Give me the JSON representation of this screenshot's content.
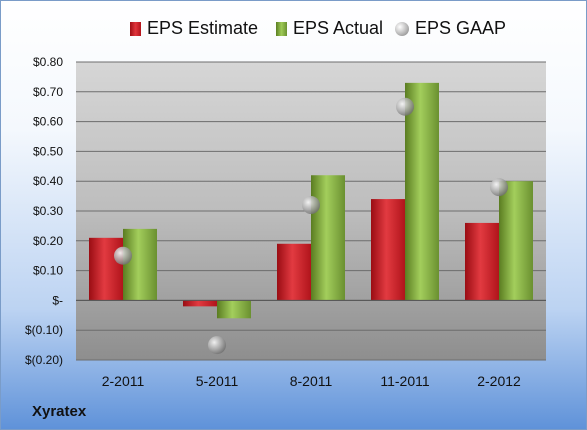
{
  "chart_data": {
    "type": "bar",
    "categories": [
      "2-2011",
      "5-2011",
      "8-2011",
      "11-2011",
      "2-2012"
    ],
    "series": [
      {
        "name": "EPS Estimate",
        "type": "bar",
        "color": "#c81f26",
        "values": [
          0.21,
          -0.02,
          0.19,
          0.34,
          0.26
        ]
      },
      {
        "name": "EPS Actual",
        "type": "bar",
        "color": "#8db847",
        "values": [
          0.24,
          -0.06,
          0.42,
          0.73,
          0.4
        ]
      },
      {
        "name": "EPS GAAP",
        "type": "scatter",
        "color": "#a8a8a8",
        "values": [
          0.15,
          -0.15,
          0.32,
          0.65,
          0.38
        ]
      }
    ],
    "ylim": [
      -0.2,
      0.8
    ],
    "yticks": [
      {
        "value": 0.8,
        "label": "$0.80"
      },
      {
        "value": 0.7,
        "label": "$0.70"
      },
      {
        "value": 0.6,
        "label": "$0.60"
      },
      {
        "value": 0.5,
        "label": "$0.50"
      },
      {
        "value": 0.4,
        "label": "$0.40"
      },
      {
        "value": 0.3,
        "label": "$0.30"
      },
      {
        "value": 0.2,
        "label": "$0.20"
      },
      {
        "value": 0.1,
        "label": "$0.10"
      },
      {
        "value": 0.0,
        "label": "$-"
      },
      {
        "value": -0.1,
        "label": "$(0.10)"
      },
      {
        "value": -0.2,
        "label": "$(0.20)"
      }
    ],
    "grid": true,
    "legend_position": "top"
  },
  "brand": "Xyratex"
}
